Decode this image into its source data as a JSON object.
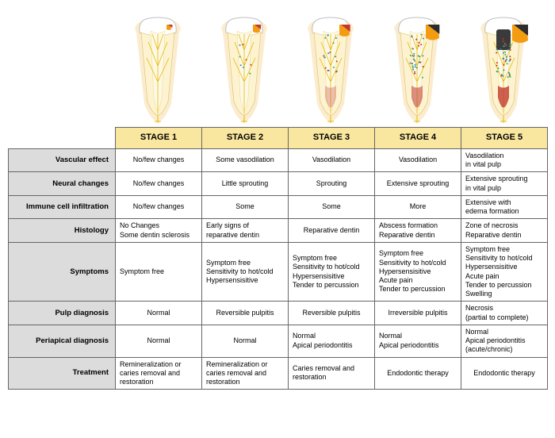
{
  "stages": {
    "headers": [
      "STAGE 1",
      "STAGE 2",
      "STAGE 3",
      "STAGE 4",
      "STAGE 5"
    ]
  },
  "rows": [
    {
      "label": "Vascular effect",
      "cells": [
        "No/few changes",
        "Some vasodilation",
        "Vasodilation",
        "Vasodilation",
        "Vasodilation\nin vital pulp"
      ],
      "align": [
        "center",
        "center",
        "center",
        "center",
        "left"
      ]
    },
    {
      "label": "Neural changes",
      "cells": [
        "No/few changes",
        "Little sprouting",
        "Sprouting",
        "Extensive sprouting",
        "Extensive sprouting\nin vital pulp"
      ],
      "align": [
        "center",
        "center",
        "center",
        "center",
        "left"
      ]
    },
    {
      "label": "Immune cell infiltration",
      "cells": [
        "No/few changes",
        "Some",
        "Some",
        "More",
        "Extensive with\nedema formation"
      ],
      "align": [
        "center",
        "center",
        "center",
        "center",
        "left"
      ]
    },
    {
      "label": "Histology",
      "cells": [
        "No Changes\nSome dentin sclerosis",
        "Early signs of\nreparative dentin",
        "Reparative dentin",
        "Abscess formation\nReparative dentin",
        "Zone of necrosis\nReparative dentin"
      ],
      "align": [
        "left",
        "left",
        "center",
        "left",
        "left"
      ]
    },
    {
      "label": "Symptoms",
      "cells": [
        "Symptom free",
        "Symptom free\nSensitivity to hot/cold\nHypersensisitive",
        "Symptom free\nSensitivity to hot/cold\nHypersensisitive\nTender to percussion",
        "Symptom free\nSensitivity to hot/cold\nHypersensisitive\nAcute pain\nTender to percussion",
        "Symptom free\nSensitivity to hot/cold\nHypersensisitive\nAcute pain\nTender to percussion\nSwelling"
      ],
      "align": [
        "left",
        "left",
        "left",
        "left",
        "left"
      ],
      "tall": true
    },
    {
      "label": "Pulp diagnosis",
      "cells": [
        "Normal",
        "Reversible pulpitis",
        "Reversible pulpitis",
        "Irreversible pulpitis",
        "Necrosis\n(partial to complete)"
      ],
      "align": [
        "center",
        "center",
        "center",
        "center",
        "left"
      ]
    },
    {
      "label": "Periapical diagnosis",
      "cells": [
        "Normal",
        "Normal",
        "Normal\nApical periodontitis",
        "Normal\nApical periodontitis",
        "Normal\nApical periodontitis\n(acute/chronic)"
      ],
      "align": [
        "center",
        "center",
        "left",
        "left",
        "left"
      ]
    },
    {
      "label": "Treatment",
      "cells": [
        "Remineralization or\ncaries removal and\nrestoration",
        "Remineralization or\ncaries removal and\nrestoration",
        "Caries removal and\nrestoration",
        "Endodontic therapy",
        "Endodontic therapy"
      ],
      "align": [
        "left",
        "left",
        "left",
        "center",
        "center"
      ]
    }
  ],
  "tooth_diagram": {
    "outline_color": "#f9dca6",
    "enamel_fill": "#ffffff",
    "enamel_stroke": "#bfbfbf",
    "dentin_fill": "#fdf3d0",
    "pulp_fill": "#fef9e7",
    "nerve_color": "#e6b800",
    "caries_colors": [
      "#f39c12",
      "#c0392b",
      "#2c2c2c"
    ],
    "vessel_color": "#c0392b",
    "infection_dot": "#2e86c1"
  },
  "style": {
    "header_bg": "#f9e79f",
    "label_bg": "#dcdcdc",
    "border_color": "#666666"
  }
}
